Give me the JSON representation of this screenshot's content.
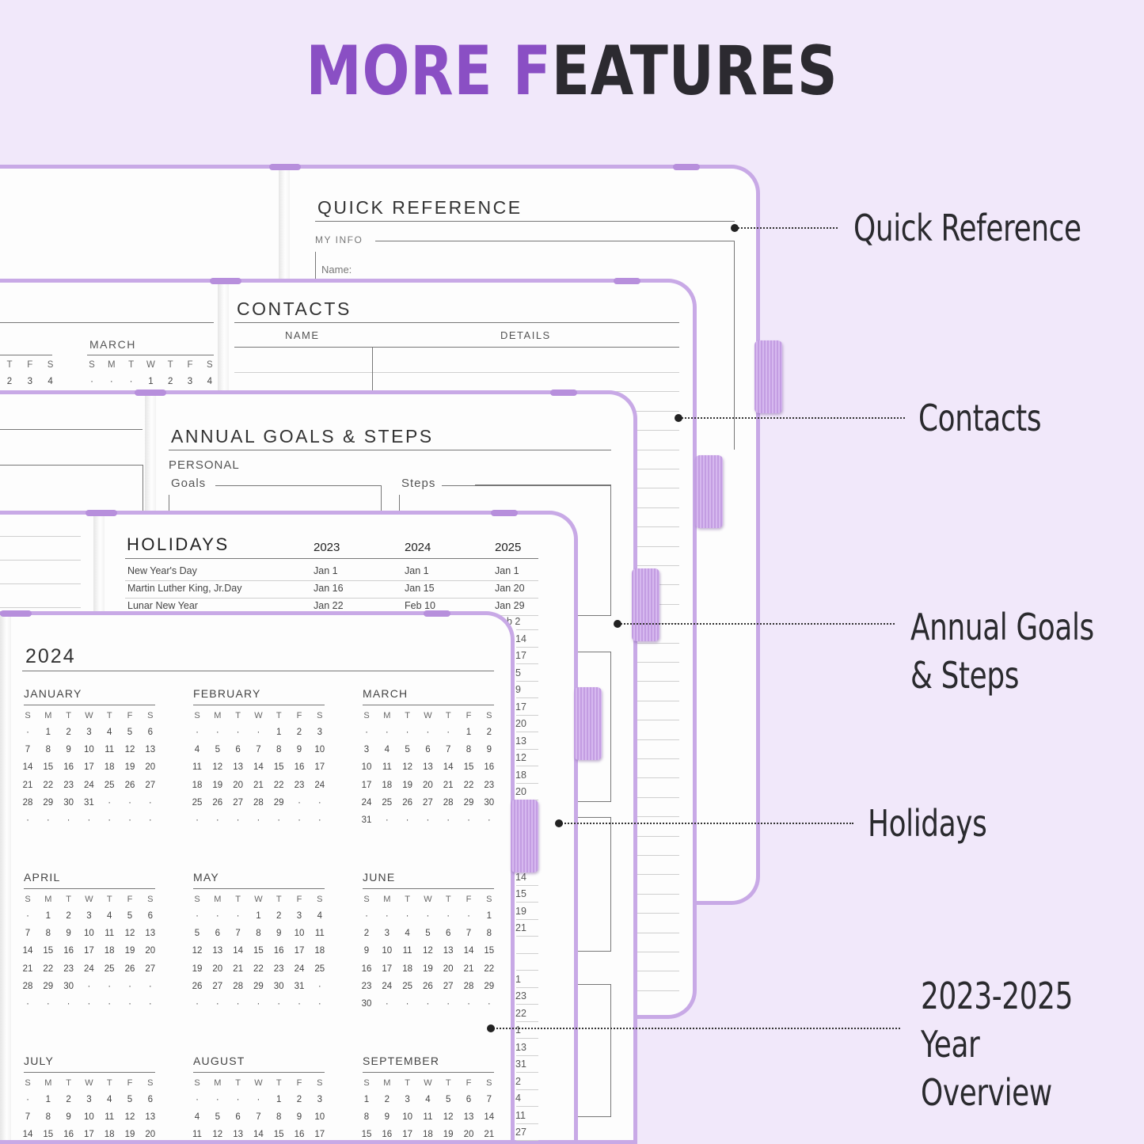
{
  "title": {
    "part_accent": "MORE F",
    "part_dark": "EATURES",
    "accent_color": "#8a4fc4",
    "dark_color": "#2c2a30"
  },
  "colors": {
    "background": "#f1e8fa",
    "cover": "#c8a9e6",
    "elastic": "#c9a7e8"
  },
  "quick_reference": {
    "heading": "QUICK REFERENCE",
    "section": "MY INFO",
    "field": "Name:"
  },
  "contacts": {
    "heading": "CONTACTS",
    "col_name": "NAME",
    "col_details": "DETAILS",
    "left_page": {
      "partial_weekdays": [
        "T",
        "F",
        "S"
      ],
      "partial_days": [
        "2",
        "3",
        "4"
      ],
      "month": "MARCH",
      "weekdays": [
        "S",
        "M",
        "T",
        "W",
        "T",
        "F",
        "S"
      ],
      "first_row": [
        "·",
        "·",
        "·",
        "1",
        "2",
        "3",
        "4"
      ]
    }
  },
  "annual_goals": {
    "heading": "ANNUAL GOALS & STEPS",
    "section": "PERSONAL",
    "goals": "Goals",
    "steps": "Steps"
  },
  "holidays": {
    "heading": "HOLIDAYS",
    "years": [
      "2023",
      "2024",
      "2025"
    ],
    "rows": [
      {
        "name": "New Year's Day",
        "d2023": "Jan 1",
        "d2024": "Jan 1",
        "d2025": "Jan 1"
      },
      {
        "name": "Martin Luther King, Jr.Day",
        "d2023": "Jan 16",
        "d2024": "Jan 15",
        "d2025": "Jan 20"
      },
      {
        "name": "Lunar New Year",
        "d2023": "Jan 22",
        "d2024": "Feb 10",
        "d2025": "Jan 29"
      }
    ],
    "visible_2025_fragments": [
      "b 2",
      "14",
      "17",
      "5",
      "9",
      "17",
      "20",
      "13",
      "12",
      "18",
      "20",
      "",
      "",
      "",
      "",
      "14",
      "15",
      "19",
      "21",
      "",
      "",
      "1",
      "23",
      "22",
      "1",
      "13",
      "31",
      "2",
      "4",
      "11",
      "27"
    ]
  },
  "year_overview": {
    "year": "2024",
    "weekdays": [
      "S",
      "M",
      "T",
      "W",
      "T",
      "F",
      "S"
    ],
    "months": [
      {
        "name": "JANUARY",
        "rows": [
          "· 1 2 3 4 5 6",
          "7 8 9 10 11 12 13",
          "14 15 16 17 18 19 20",
          "21 22 23 24 25 26 27",
          "28 29 30 31 · · ·",
          "· · · · · · ·"
        ]
      },
      {
        "name": "FEBRUARY",
        "rows": [
          "· · · · 1 2 3",
          "4 5 6 7 8 9 10",
          "11 12 13 14 15 16 17",
          "18 19 20 21 22 23 24",
          "25 26 27 28 29 · ·",
          "· · · · · · ·"
        ]
      },
      {
        "name": "MARCH",
        "rows": [
          "· · · · · 1 2",
          "3 4 5 6 7 8 9",
          "10 11 12 13 14 15 16",
          "17 18 19 20 21 22 23",
          "24 25 26 27 28 29 30",
          "31 · · · · · ·"
        ]
      },
      {
        "name": "APRIL",
        "rows": [
          "· 1 2 3 4 5 6",
          "7 8 9 10 11 12 13",
          "14 15 16 17 18 19 20",
          "21 22 23 24 25 26 27",
          "28 29 30 · · · ·",
          "· · · · · · ·"
        ]
      },
      {
        "name": "MAY",
        "rows": [
          "· · · 1 2 3 4",
          "5 6 7 8 9 10 11",
          "12 13 14 15 16 17 18",
          "19 20 21 22 23 24 25",
          "26 27 28 29 30 31 ·",
          "· · · · · · ·"
        ]
      },
      {
        "name": "JUNE",
        "rows": [
          "· · · · · · 1",
          "2 3 4 5 6 7 8",
          "9 10 11 12 13 14 15",
          "16 17 18 19 20 21 22",
          "23 24 25 26 27 28 29",
          "30 · · · · · ·"
        ]
      },
      {
        "name": "JULY",
        "rows": [
          "· 1 2 3 4 5 6",
          "7 8 9 10 11 12 13",
          "14 15 16 17 18 19 20"
        ]
      },
      {
        "name": "AUGUST",
        "rows": [
          "· · · · 1 2 3",
          "4 5 6 7 8 9 10",
          "11 12 13 14 15 16 17"
        ]
      },
      {
        "name": "SEPTEMBER",
        "rows": [
          "1 2 3 4 5 6 7",
          "8 9 10 11 12 13 14",
          "15 16 17 18 19 20 21"
        ]
      }
    ]
  },
  "callouts": [
    {
      "lines": [
        "Quick Reference"
      ]
    },
    {
      "lines": [
        "Contacts"
      ]
    },
    {
      "lines": [
        "Annual Goals",
        "& Steps"
      ]
    },
    {
      "lines": [
        "Holidays"
      ]
    },
    {
      "lines": [
        "2023-2025",
        "Year",
        "Overview"
      ]
    }
  ]
}
